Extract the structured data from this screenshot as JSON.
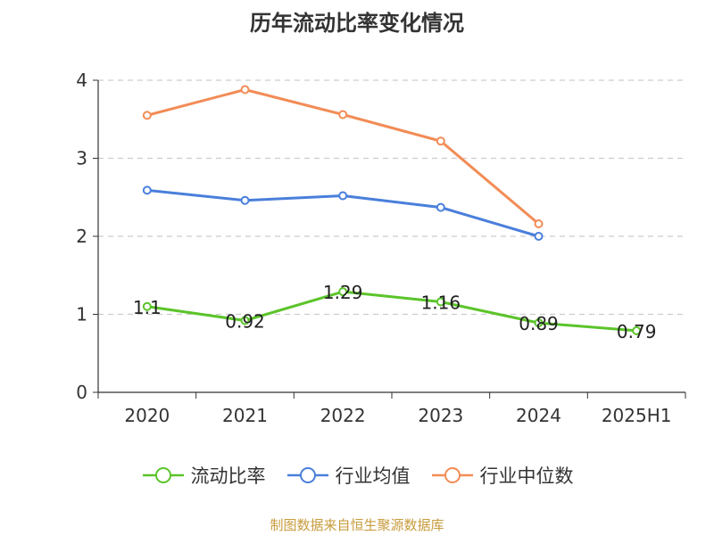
{
  "chart_data": {
    "type": "line",
    "title": "历年流动比率变化情况",
    "categories": [
      "2020",
      "2021",
      "2022",
      "2023",
      "2024",
      "2025H1"
    ],
    "yticks": [
      "0",
      "1",
      "2",
      "3",
      "4"
    ],
    "ylim": [
      0,
      4
    ],
    "grid": true,
    "legend_position": "bottom",
    "series": [
      {
        "name": "流动比率",
        "color": "#5bc42a",
        "values": [
          1.1,
          0.92,
          1.29,
          1.16,
          0.89,
          0.79
        ],
        "labels": [
          "1.1",
          "0.92",
          "1.29",
          "1.16",
          "0.89",
          "0.79"
        ]
      },
      {
        "name": "行业均值",
        "color": "#4a7fdb",
        "values": [
          2.59,
          2.46,
          2.52,
          2.37,
          2.0,
          null
        ]
      },
      {
        "name": "行业中位数",
        "color": "#f28c56",
        "values": [
          3.55,
          3.88,
          3.56,
          3.22,
          2.16,
          null
        ]
      }
    ]
  },
  "source": "制图数据来自恒生聚源数据库"
}
